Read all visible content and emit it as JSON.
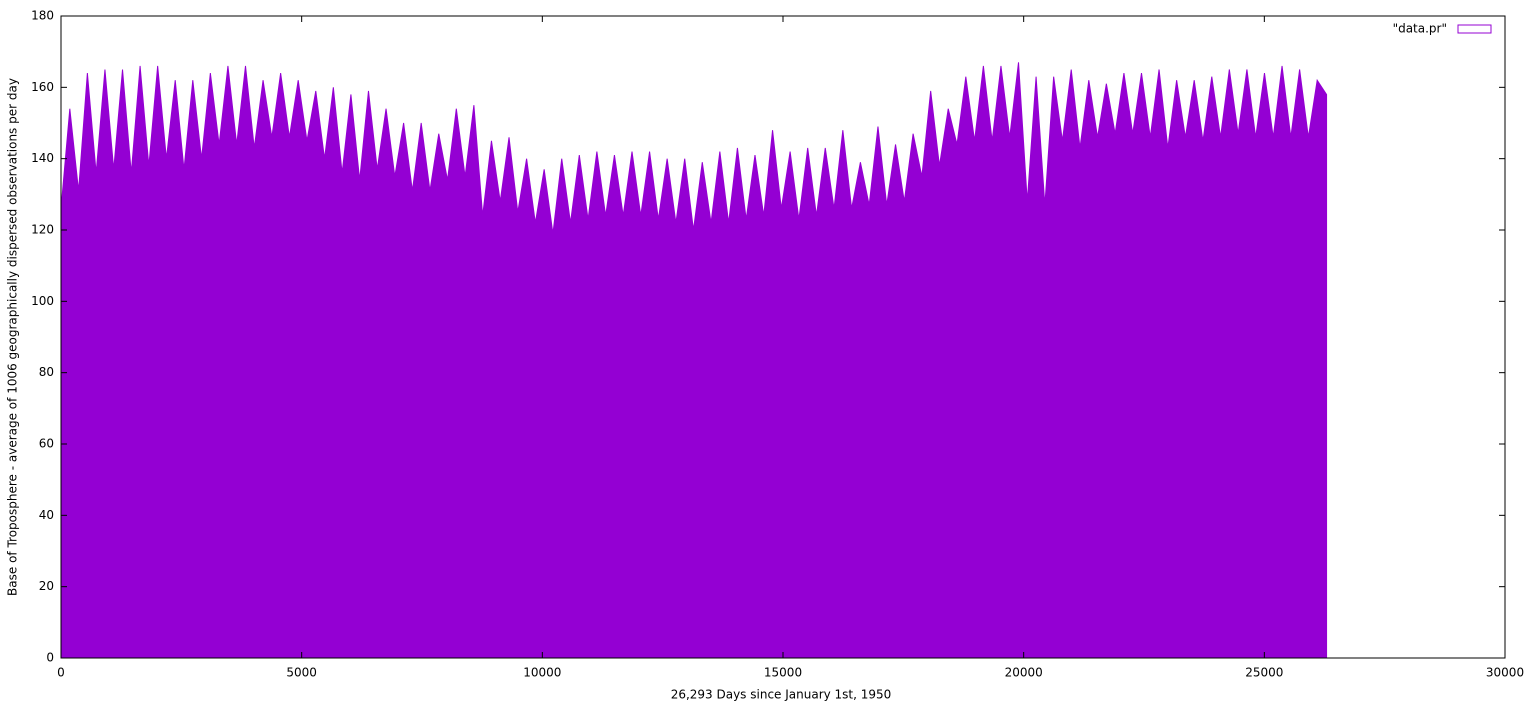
{
  "chart_data": {
    "type": "area",
    "x_label": "26,293 Days since January 1st, 1950",
    "y_label": "Base of Troposphere - average of 1006 geographically dispersed observations per day",
    "xlim": [
      0,
      30000
    ],
    "xticks": [
      0,
      5000,
      10000,
      15000,
      20000,
      25000,
      30000
    ],
    "ylim": [
      0,
      180
    ],
    "yticks": [
      0,
      20,
      40,
      60,
      80,
      100,
      120,
      140,
      160,
      180
    ],
    "legend": "top-right",
    "x": [
      0,
      183,
      365,
      548,
      730,
      913,
      1095,
      1278,
      1460,
      1643,
      1825,
      2008,
      2190,
      2373,
      2555,
      2738,
      2920,
      3103,
      3285,
      3468,
      3650,
      3833,
      4015,
      4198,
      4380,
      4563,
      4745,
      4928,
      5110,
      5293,
      5475,
      5658,
      5840,
      6023,
      6205,
      6388,
      6570,
      6753,
      6935,
      7118,
      7300,
      7483,
      7665,
      7848,
      8030,
      8213,
      8395,
      8578,
      8760,
      8943,
      9125,
      9308,
      9490,
      9673,
      9855,
      10038,
      10220,
      10403,
      10585,
      10768,
      10950,
      11133,
      11315,
      11498,
      11680,
      11863,
      12045,
      12228,
      12410,
      12593,
      12775,
      12958,
      13140,
      13323,
      13505,
      13688,
      13870,
      14053,
      14235,
      14418,
      14600,
      14783,
      14965,
      15148,
      15330,
      15513,
      15695,
      15878,
      16060,
      16243,
      16425,
      16608,
      16790,
      16973,
      17155,
      17338,
      17520,
      17703,
      17885,
      18068,
      18250,
      18433,
      18615,
      18798,
      18980,
      19163,
      19345,
      19528,
      19710,
      19893,
      20075,
      20258,
      20440,
      20623,
      20805,
      20988,
      21170,
      21353,
      21535,
      21718,
      21900,
      22083,
      22265,
      22448,
      22630,
      22813,
      22995,
      23178,
      23360,
      23543,
      23725,
      23908,
      24090,
      24273,
      24455,
      24638,
      24820,
      25003,
      25185,
      25368,
      25550,
      25733,
      25915,
      26098,
      26293
    ],
    "series": [
      {
        "name": "\"data.pr\"",
        "color": "#9400d3",
        "values": [
          126,
          154,
          131,
          164,
          136,
          165,
          137,
          165,
          136,
          166,
          138,
          166,
          140,
          162,
          137,
          162,
          140,
          164,
          144,
          166,
          144,
          166,
          143,
          162,
          146,
          164,
          146,
          162,
          145,
          159,
          140,
          160,
          136,
          158,
          134,
          159,
          137,
          154,
          135,
          150,
          131,
          150,
          131,
          147,
          134,
          154,
          135,
          155,
          124,
          145,
          128,
          146,
          125,
          140,
          122,
          137,
          119,
          140,
          122,
          141,
          123,
          142,
          124,
          141,
          124,
          142,
          124,
          142,
          123,
          140,
          122,
          140,
          120,
          139,
          122,
          142,
          122,
          143,
          123,
          141,
          124,
          148,
          126,
          142,
          123,
          143,
          124,
          143,
          126,
          148,
          126,
          139,
          127,
          149,
          127,
          144,
          128,
          147,
          135,
          159,
          138,
          154,
          144,
          163,
          145,
          166,
          145,
          166,
          146,
          167,
          128,
          163,
          127,
          163,
          145,
          165,
          143,
          162,
          146,
          161,
          147,
          164,
          147,
          164,
          146,
          165,
          143,
          162,
          146,
          162,
          145,
          163,
          146,
          165,
          147,
          165,
          146,
          164,
          146,
          166,
          146,
          165,
          146,
          162,
          158
        ]
      }
    ]
  }
}
